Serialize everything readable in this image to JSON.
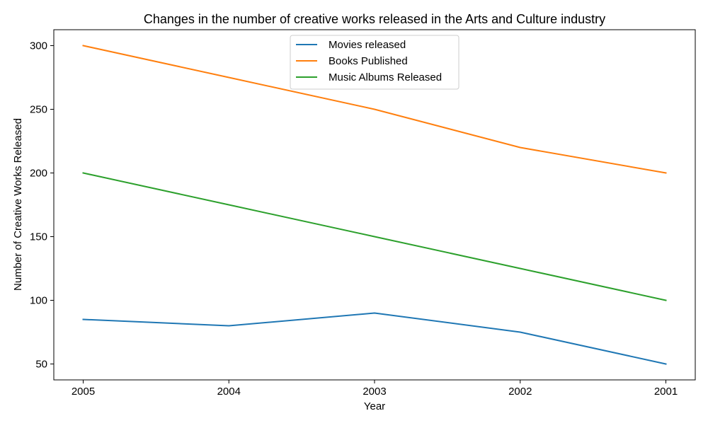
{
  "chart_data": {
    "type": "line",
    "title": "Changes in the number of creative works released in the Arts and Culture industry",
    "xlabel": "Year",
    "ylabel": "Number of Creative Works Released",
    "categories": [
      "2005",
      "2004",
      "2003",
      "2002",
      "2001"
    ],
    "yticks": [
      50,
      100,
      150,
      200,
      250,
      300
    ],
    "ylim": [
      37.5,
      312.5
    ],
    "grid": false,
    "legend_position": "top-center",
    "series": [
      {
        "name": "Movies released",
        "color": "#1f77b4",
        "values": [
          85,
          80,
          90,
          75,
          50
        ]
      },
      {
        "name": "Books Published",
        "color": "#ff7f0e",
        "values": [
          300,
          275,
          250,
          220,
          200
        ]
      },
      {
        "name": "Music Albums Released",
        "color": "#2ca02c",
        "values": [
          200,
          175,
          150,
          125,
          100
        ]
      }
    ]
  }
}
